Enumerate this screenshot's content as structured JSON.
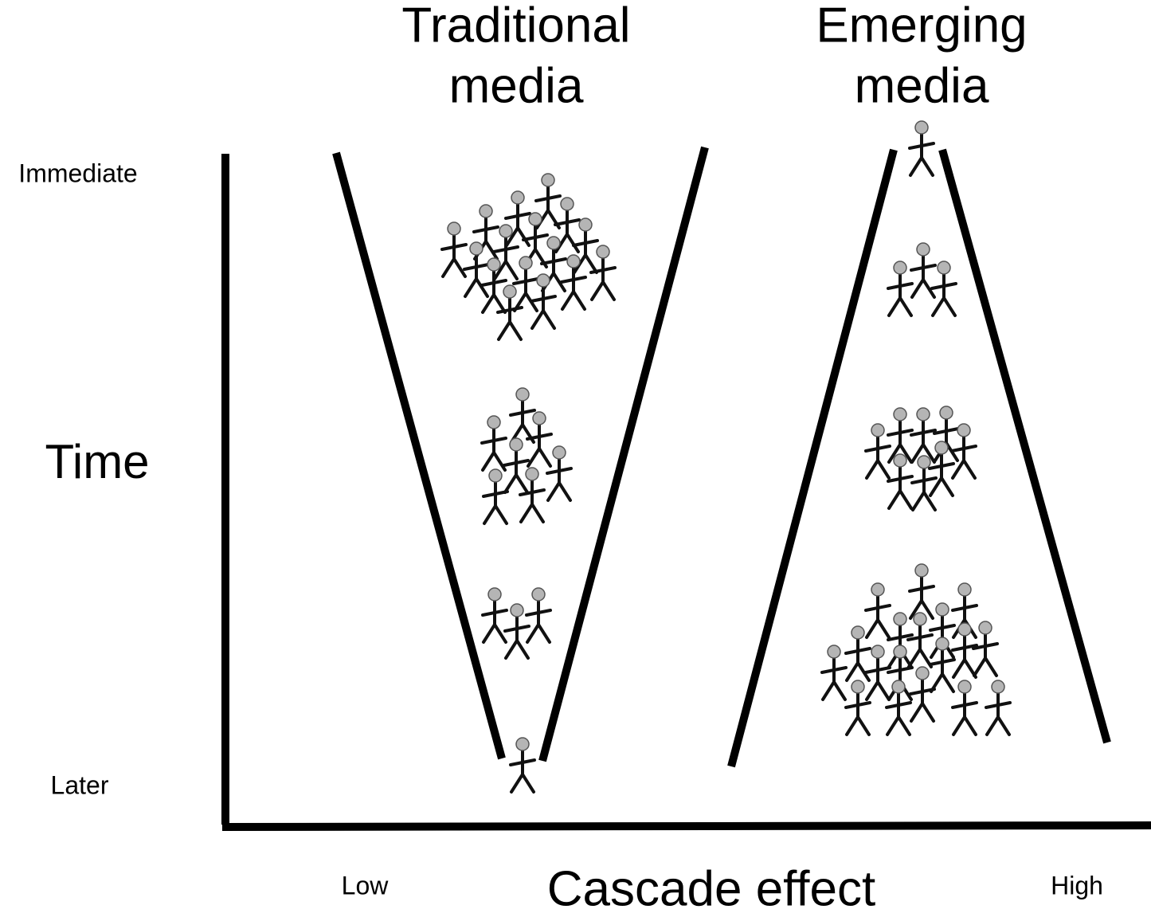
{
  "panels": [
    {
      "title": [
        "Traditional",
        "media"
      ]
    },
    {
      "title": [
        "Emerging",
        "media"
      ]
    }
  ],
  "y_axis": {
    "label": "Time",
    "top": "Immediate",
    "bottom": "Later"
  },
  "x_axis": {
    "label": "Cascade effect",
    "low": "Low",
    "high": "High"
  }
}
